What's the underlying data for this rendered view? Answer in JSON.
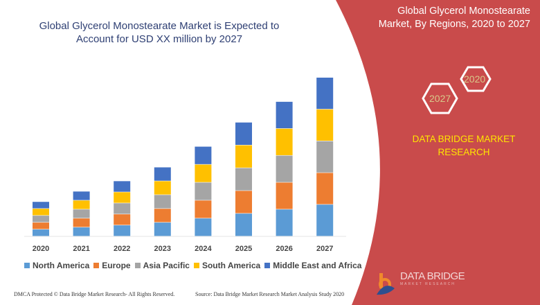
{
  "header": {
    "title": "Global Glycerol Monostearate Market is Expected to Account for USD XX million by 2027"
  },
  "side_panel": {
    "title": "Global Glycerol Monostearate Market, By Regions, 2020 to 2027",
    "hex_start": "2020",
    "hex_end": "2027",
    "brand": "DATA BRIDGE MARKET RESEARCH",
    "logo_text": "DATA BRIDGE",
    "logo_sub": "MARKET RESEARCH"
  },
  "footer": {
    "copyright": "DMCA Protected © Data Bridge Market Research- All Rights Reserved.",
    "source": "Source: Data Bridge Market Research Market Analysis Study 2020"
  },
  "colors": {
    "panel": "#c94b4b",
    "title": "#2e3f73",
    "brand_text": "#ffe600"
  },
  "chart_data": {
    "type": "bar",
    "stacked": true,
    "title": "",
    "xlabel": "",
    "ylabel": "",
    "grid": false,
    "legend": "bottom",
    "categories": [
      "2020",
      "2021",
      "2022",
      "2023",
      "2024",
      "2025",
      "2026",
      "2027"
    ],
    "series": [
      {
        "name": "North America",
        "color": "#5b9bd5",
        "values": [
          10,
          13,
          16,
          20,
          26,
          33,
          39,
          46
        ]
      },
      {
        "name": "Europe",
        "color": "#ed7d31",
        "values": [
          10,
          13,
          16,
          20,
          26,
          33,
          39,
          46
        ]
      },
      {
        "name": "Asia Pacific",
        "color": "#a5a5a5",
        "values": [
          10,
          13,
          16,
          20,
          26,
          33,
          39,
          46
        ]
      },
      {
        "name": "South America",
        "color": "#ffc000",
        "values": [
          10,
          13,
          16,
          20,
          26,
          33,
          39,
          46
        ]
      },
      {
        "name": "Middle East and Africa",
        "color": "#4472c4",
        "values": [
          10,
          13,
          16,
          20,
          26,
          33,
          39,
          46
        ]
      }
    ]
  }
}
